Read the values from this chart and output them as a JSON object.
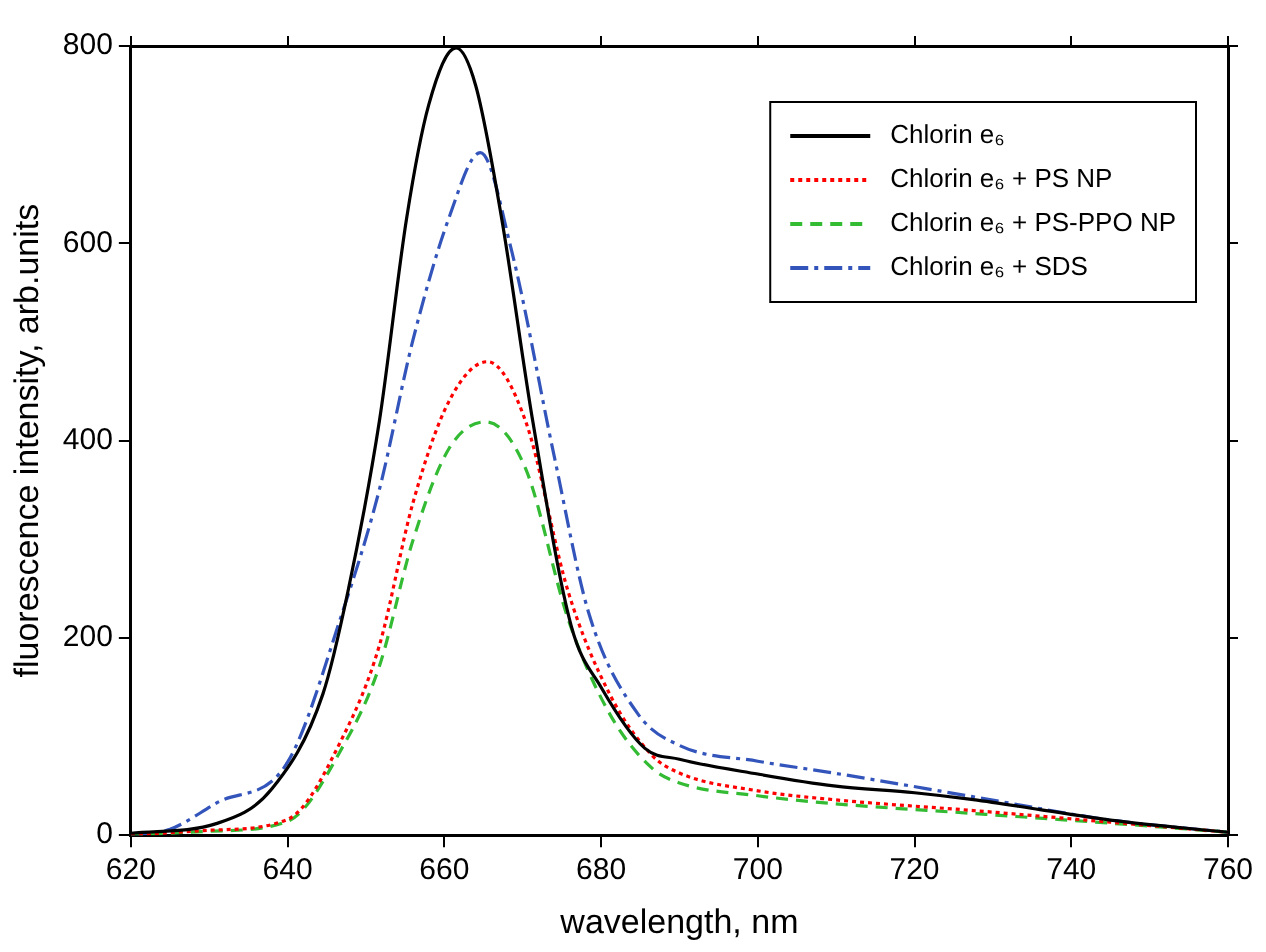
{
  "chart_data": {
    "type": "line",
    "xlabel": "wavelength, nm",
    "ylabel": "fluorescence intensity, arb.units",
    "xlim": [
      620,
      760
    ],
    "xticks": [
      620,
      640,
      660,
      680,
      700,
      720,
      740,
      760
    ],
    "ylim": [
      0,
      800
    ],
    "yticks": [
      0,
      200,
      400,
      600,
      800
    ],
    "legend": "top right",
    "grid": false,
    "marker": "none",
    "series": [
      {
        "name": "Chlorin e₆",
        "color": "#000000",
        "line_style": "solid",
        "x": [
          620,
          631,
          638,
          644.5,
          647.7,
          651.7,
          655.2,
          658,
          661.5,
          664,
          667.3,
          671.3,
          676.2,
          680,
          685.6,
          690,
          700,
          709.7,
          720,
          727.5,
          736,
          745.3,
          760
        ],
        "values": [
          2,
          12,
          47,
          143,
          247,
          419,
          626,
          740,
          798,
          760,
          626,
          419,
          212,
          150,
          88,
          77,
          62,
          50,
          43,
          36,
          26,
          15,
          3
        ]
      },
      {
        "name": "Chlorin e₆ + PS NP",
        "color": "#ff0000",
        "line_style": "dotted",
        "x": [
          620,
          630,
          640,
          647.2,
          651.7,
          656,
          660.6,
          665.5,
          670.4,
          675.8,
          681.1,
          686.5,
          690,
          700,
          709.7,
          727.5,
          745.3,
          760
        ],
        "values": [
          0,
          5,
          16,
          102,
          192,
          337,
          440,
          480,
          419,
          247,
          143,
          81,
          63,
          45,
          36,
          25,
          13,
          3
        ]
      },
      {
        "name": "Chlorin e₆ + PS-PPO NP",
        "color": "#33bb33",
        "line_style": "dashed",
        "x": [
          620,
          630,
          640,
          647.2,
          651.7,
          656,
          660.6,
          665.3,
          670.4,
          675.8,
          681.1,
          686.5,
          690,
          700,
          709.7,
          727.5,
          745.3,
          760
        ],
        "values": [
          0,
          4,
          14,
          92,
          171,
          299,
          392,
          419,
          371,
          219,
          123,
          68,
          53,
          40,
          32,
          22,
          12,
          3
        ]
      },
      {
        "name": "Chlorin e₆ + SDS",
        "color": "#3355bb",
        "line_style": "dashdot",
        "x": [
          620,
          625,
          631,
          640,
          647,
          651.7,
          656,
          660.6,
          664.6,
          668.6,
          674,
          678.4,
          684.7,
          690,
          700,
          709.7,
          727.5,
          745.3,
          760
        ],
        "values": [
          0,
          6,
          33,
          74,
          226,
          350,
          502,
          626,
          692,
          592,
          385,
          226,
          123,
          91,
          75,
          63,
          39,
          15,
          3
        ]
      }
    ]
  }
}
